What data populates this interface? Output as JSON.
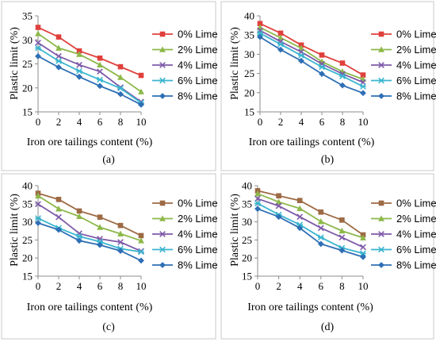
{
  "chart_data": [
    {
      "panel": "(a)",
      "type": "line",
      "xlabel": "Iron ore tailings content (%)",
      "ylabel": "Plastic  limit (%)",
      "x": [
        0,
        2,
        4,
        6,
        8,
        10
      ],
      "xlim": [
        0,
        10
      ],
      "xticks": [
        0,
        2,
        4,
        6,
        8,
        10
      ],
      "ylim": [
        15,
        35
      ],
      "yticks": [
        15,
        20,
        25,
        30,
        35
      ],
      "grid": false,
      "legend_position": "right",
      "series": [
        {
          "name": "0% Lime",
          "color": "#e0403c",
          "marker": "square",
          "values": [
            32.6,
            30.6,
            27.7,
            26.2,
            24.4,
            22.6
          ]
        },
        {
          "name": "2% Lime",
          "color": "#8db84a",
          "marker": "triangle",
          "values": [
            31.3,
            28.3,
            27.0,
            24.8,
            22.2,
            19.2
          ]
        },
        {
          "name": "4% Lime",
          "color": "#7e5aa8",
          "marker": "x",
          "values": [
            29.4,
            26.6,
            24.8,
            23.4,
            20.1,
            17.1
          ]
        },
        {
          "name": "6% Lime",
          "color": "#3ab5cf",
          "marker": "star",
          "values": [
            28.3,
            25.6,
            23.5,
            21.7,
            19.9,
            16.9
          ]
        },
        {
          "name": "8% Lime",
          "color": "#2e6fb5",
          "marker": "diamond",
          "values": [
            26.6,
            24.3,
            22.3,
            20.4,
            18.7,
            16.5
          ]
        }
      ]
    },
    {
      "panel": "(b)",
      "type": "line",
      "xlabel": "Iron ore tailings content (%)",
      "ylabel": "Plastic  limit (%)",
      "x": [
        0,
        2,
        4,
        6,
        8,
        10
      ],
      "xlim": [
        0,
        10
      ],
      "xticks": [
        0,
        2,
        4,
        6,
        8,
        10
      ],
      "ylim": [
        15,
        40
      ],
      "yticks": [
        15,
        20,
        25,
        30,
        35,
        40
      ],
      "grid": false,
      "legend_position": "right",
      "series": [
        {
          "name": "0% Lime",
          "color": "#e0403c",
          "marker": "square",
          "values": [
            38.0,
            35.5,
            32.4,
            29.8,
            27.7,
            24.6
          ]
        },
        {
          "name": "2% Lime",
          "color": "#8db84a",
          "marker": "triangle",
          "values": [
            37.0,
            34.3,
            31.6,
            28.1,
            25.5,
            23.5
          ]
        },
        {
          "name": "4% Lime",
          "color": "#7e5aa8",
          "marker": "x",
          "values": [
            36.2,
            33.3,
            30.6,
            27.5,
            24.9,
            22.7
          ]
        },
        {
          "name": "6% Lime",
          "color": "#3ab5cf",
          "marker": "star",
          "values": [
            35.5,
            32.6,
            29.7,
            26.7,
            24.3,
            21.6
          ]
        },
        {
          "name": "8% Lime",
          "color": "#2e6fb5",
          "marker": "diamond",
          "values": [
            34.5,
            31.2,
            28.3,
            24.9,
            21.9,
            19.9
          ]
        }
      ]
    },
    {
      "panel": "(c)",
      "type": "line",
      "xlabel": "Iron ore tailings content (%)",
      "ylabel": "Plastic  limit (%)",
      "x": [
        0,
        2,
        4,
        6,
        8,
        10
      ],
      "xlim": [
        0,
        10
      ],
      "xticks": [
        0,
        2,
        4,
        6,
        8,
        10
      ],
      "ylim": [
        15,
        40
      ],
      "yticks": [
        15,
        20,
        25,
        30,
        35,
        40
      ],
      "grid": false,
      "legend_position": "right",
      "series": [
        {
          "name": "0% Lime",
          "color": "#9c6a44",
          "marker": "square",
          "values": [
            37.9,
            36.2,
            33.0,
            31.3,
            29.0,
            26.2
          ]
        },
        {
          "name": "2% Lime",
          "color": "#8db84a",
          "marker": "triangle",
          "values": [
            37.2,
            33.6,
            31.5,
            28.5,
            26.7,
            24.8
          ]
        },
        {
          "name": "4% Lime",
          "color": "#7e5aa8",
          "marker": "x",
          "values": [
            34.9,
            31.3,
            26.8,
            25.3,
            24.4,
            21.9
          ]
        },
        {
          "name": "6% Lime",
          "color": "#3ab5cf",
          "marker": "star",
          "values": [
            31.0,
            28.3,
            26.0,
            24.5,
            22.6,
            21.7
          ]
        },
        {
          "name": "8% Lime",
          "color": "#2e6fb5",
          "marker": "diamond",
          "values": [
            29.7,
            27.8,
            24.8,
            23.6,
            22.0,
            19.3
          ]
        }
      ]
    },
    {
      "panel": "(d)",
      "type": "line",
      "xlabel": "Iron ore tailings content (%)",
      "ylabel": "Plastic  limit (%)",
      "x": [
        0,
        2,
        4,
        6,
        8,
        10
      ],
      "xlim": [
        0,
        10
      ],
      "xticks": [
        0,
        2,
        4,
        6,
        8,
        10
      ],
      "ylim": [
        15,
        40
      ],
      "yticks": [
        15,
        20,
        25,
        30,
        35,
        40
      ],
      "grid": false,
      "legend_position": "right",
      "series": [
        {
          "name": "0% Lime",
          "color": "#9c6a44",
          "marker": "square",
          "values": [
            38.6,
            37.2,
            35.9,
            32.7,
            30.5,
            26.4
          ]
        },
        {
          "name": "2% Lime",
          "color": "#8db84a",
          "marker": "triangle",
          "values": [
            37.8,
            35.5,
            33.7,
            30.1,
            27.5,
            25.6
          ]
        },
        {
          "name": "4% Lime",
          "color": "#7e5aa8",
          "marker": "x",
          "values": [
            36.4,
            34.4,
            31.4,
            28.3,
            25.7,
            23.0
          ]
        },
        {
          "name": "6% Lime",
          "color": "#3ab5cf",
          "marker": "star",
          "values": [
            35.1,
            32.0,
            29.2,
            25.7,
            22.8,
            21.3
          ]
        },
        {
          "name": "8% Lime",
          "color": "#2e6fb5",
          "marker": "diamond",
          "values": [
            33.6,
            31.4,
            28.3,
            23.9,
            22.1,
            20.3
          ]
        }
      ]
    }
  ]
}
